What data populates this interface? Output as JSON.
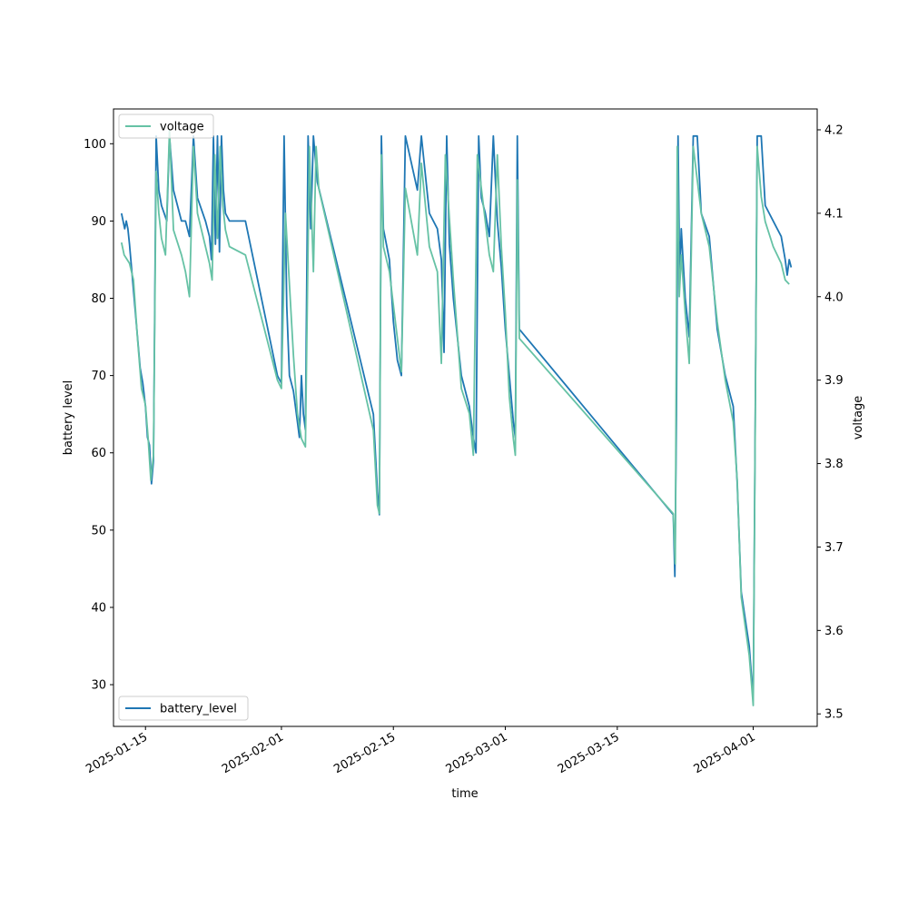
{
  "chart_data": {
    "type": "line",
    "xlabel": "time",
    "ylabel_left": "battery level",
    "ylabel_right": "voltage",
    "x_ticks": [
      "2025-01-15",
      "2025-02-01",
      "2025-02-15",
      "2025-03-01",
      "2025-03-15",
      "2025-04-01"
    ],
    "x_range": [
      "2025-01-11",
      "2025-04-09"
    ],
    "y_left_ticks": [
      30,
      40,
      50,
      60,
      70,
      80,
      90,
      100
    ],
    "y_left_range": [
      24.6,
      104.5
    ],
    "y_right_ticks": [
      3.5,
      3.6,
      3.7,
      3.8,
      3.9,
      4.0,
      4.1,
      4.2
    ],
    "y_right_range": [
      3.485,
      4.225
    ],
    "grid": false,
    "series": [
      {
        "name": "battery_level",
        "axis": "left",
        "color": "#1f77b4",
        "legend_position": "lower-left",
        "points": [
          [
            "2025-01-12",
            91
          ],
          [
            "2025-01-12",
            90
          ],
          [
            "2025-01-12",
            89
          ],
          [
            "2025-01-12",
            90
          ],
          [
            "2025-01-12",
            89
          ],
          [
            "2025-01-13",
            87
          ],
          [
            "2025-01-13",
            83
          ],
          [
            "2025-01-13",
            79
          ],
          [
            "2025-01-14",
            75
          ],
          [
            "2025-01-14",
            71
          ],
          [
            "2025-01-14",
            69
          ],
          [
            "2025-01-15",
            66
          ],
          [
            "2025-01-15",
            62
          ],
          [
            "2025-01-15",
            61
          ],
          [
            "2025-01-15",
            56
          ],
          [
            "2025-01-16",
            59
          ],
          [
            "2025-01-16",
            101
          ],
          [
            "2025-01-16",
            94
          ],
          [
            "2025-01-17",
            92
          ],
          [
            "2025-01-17",
            91
          ],
          [
            "2025-01-17",
            90
          ],
          [
            "2025-01-18",
            101
          ],
          [
            "2025-01-18",
            94
          ],
          [
            "2025-01-19",
            92
          ],
          [
            "2025-01-19",
            90
          ],
          [
            "2025-01-20",
            90
          ],
          [
            "2025-01-20",
            88
          ],
          [
            "2025-01-21",
            101
          ],
          [
            "2025-01-21",
            93
          ],
          [
            "2025-01-22",
            90
          ],
          [
            "2025-01-23",
            88
          ],
          [
            "2025-01-23",
            85
          ],
          [
            "2025-01-23",
            101
          ],
          [
            "2025-01-23",
            87
          ],
          [
            "2025-01-24",
            101
          ],
          [
            "2025-01-24",
            86
          ],
          [
            "2025-01-24",
            101
          ],
          [
            "2025-01-24",
            94
          ],
          [
            "2025-01-25",
            91
          ],
          [
            "2025-01-25",
            90
          ],
          [
            "2025-01-27",
            90
          ],
          [
            "2025-01-31",
            70
          ],
          [
            "2025-02-01",
            69
          ],
          [
            "2025-02-01",
            101
          ],
          [
            "2025-02-01",
            79
          ],
          [
            "2025-02-02",
            70
          ],
          [
            "2025-02-02",
            68
          ],
          [
            "2025-02-03",
            64
          ],
          [
            "2025-02-03",
            62
          ],
          [
            "2025-02-03",
            70
          ],
          [
            "2025-02-03",
            65
          ],
          [
            "2025-02-04",
            63
          ],
          [
            "2025-02-04",
            101
          ],
          [
            "2025-02-04",
            89
          ],
          [
            "2025-02-05",
            101
          ],
          [
            "2025-02-05",
            95
          ],
          [
            "2025-02-12",
            65
          ],
          [
            "2025-02-13",
            55
          ],
          [
            "2025-02-13",
            52
          ],
          [
            "2025-02-13",
            101
          ],
          [
            "2025-02-13",
            89
          ],
          [
            "2025-02-14",
            85
          ],
          [
            "2025-02-15",
            77
          ],
          [
            "2025-02-15",
            72
          ],
          [
            "2025-02-16",
            70
          ],
          [
            "2025-02-16",
            101
          ],
          [
            "2025-02-18",
            94
          ],
          [
            "2025-02-18",
            101
          ],
          [
            "2025-02-19",
            91
          ],
          [
            "2025-02-20",
            89
          ],
          [
            "2025-02-21",
            85
          ],
          [
            "2025-02-21",
            73
          ],
          [
            "2025-02-21",
            101
          ],
          [
            "2025-02-22",
            87
          ],
          [
            "2025-02-22",
            80
          ],
          [
            "2025-02-23",
            70
          ],
          [
            "2025-02-24",
            66
          ],
          [
            "2025-02-25",
            62
          ],
          [
            "2025-02-25",
            60
          ],
          [
            "2025-02-25",
            101
          ],
          [
            "2025-02-26",
            93
          ],
          [
            "2025-02-26",
            91
          ],
          [
            "2025-02-27",
            88
          ],
          [
            "2025-02-27",
            101
          ],
          [
            "2025-02-28",
            90
          ],
          [
            "2025-02-28",
            84
          ],
          [
            "2025-03-01",
            76
          ],
          [
            "2025-03-01",
            70
          ],
          [
            "2025-03-02",
            64
          ],
          [
            "2025-03-02",
            62
          ],
          [
            "2025-03-02",
            101
          ],
          [
            "2025-03-02",
            76
          ],
          [
            "2025-03-22",
            52
          ],
          [
            "2025-03-22",
            44
          ],
          [
            "2025-03-22",
            65
          ],
          [
            "2025-03-22",
            101
          ],
          [
            "2025-03-22",
            82
          ],
          [
            "2025-03-23",
            89
          ],
          [
            "2025-03-23",
            80
          ],
          [
            "2025-03-24",
            75
          ],
          [
            "2025-03-24",
            101
          ],
          [
            "2025-03-25",
            101
          ],
          [
            "2025-03-25",
            91
          ],
          [
            "2025-03-26",
            88
          ],
          [
            "2025-03-27",
            76
          ],
          [
            "2025-03-28",
            70
          ],
          [
            "2025-03-29",
            66
          ],
          [
            "2025-03-30",
            56
          ],
          [
            "2025-03-30",
            42
          ],
          [
            "2025-03-31",
            35
          ],
          [
            "2025-04-01",
            28
          ],
          [
            "2025-04-01",
            101
          ],
          [
            "2025-04-02",
            101
          ],
          [
            "2025-04-02",
            92
          ],
          [
            "2025-04-03",
            90
          ],
          [
            "2025-04-04",
            88
          ],
          [
            "2025-04-05",
            85
          ],
          [
            "2025-04-05",
            83
          ],
          [
            "2025-04-05",
            85
          ],
          [
            "2025-04-05",
            84
          ]
        ]
      },
      {
        "name": "voltage",
        "axis": "right",
        "color": "#66c2a5",
        "legend_position": "upper-left",
        "points": [
          [
            "2025-01-12",
            4.065
          ],
          [
            "2025-01-12",
            4.05
          ],
          [
            "2025-01-12",
            4.045
          ],
          [
            "2025-01-13",
            4.04
          ],
          [
            "2025-01-13",
            4.02
          ],
          [
            "2025-01-14",
            3.95
          ],
          [
            "2025-01-14",
            3.89
          ],
          [
            "2025-01-15",
            3.87
          ],
          [
            "2025-01-15",
            3.83
          ],
          [
            "2025-01-15",
            3.78
          ],
          [
            "2025-01-16",
            3.81
          ],
          [
            "2025-01-16",
            4.15
          ],
          [
            "2025-01-16",
            4.1
          ],
          [
            "2025-01-17",
            4.07
          ],
          [
            "2025-01-17",
            4.05
          ],
          [
            "2025-01-18",
            4.2
          ],
          [
            "2025-01-18",
            4.08
          ],
          [
            "2025-01-19",
            4.05
          ],
          [
            "2025-01-20",
            4.03
          ],
          [
            "2025-01-20",
            4.0
          ],
          [
            "2025-01-21",
            4.18
          ],
          [
            "2025-01-21",
            4.1
          ],
          [
            "2025-01-22",
            4.06
          ],
          [
            "2025-01-23",
            4.04
          ],
          [
            "2025-01-23",
            4.02
          ],
          [
            "2025-01-23",
            4.17
          ],
          [
            "2025-01-24",
            4.07
          ],
          [
            "2025-01-24",
            4.18
          ],
          [
            "2025-01-24",
            4.11
          ],
          [
            "2025-01-25",
            4.08
          ],
          [
            "2025-01-25",
            4.06
          ],
          [
            "2025-01-27",
            4.05
          ],
          [
            "2025-01-31",
            3.9
          ],
          [
            "2025-02-01",
            3.89
          ],
          [
            "2025-02-01",
            4.1
          ],
          [
            "2025-02-02",
            3.93
          ],
          [
            "2025-02-03",
            3.86
          ],
          [
            "2025-02-03",
            3.83
          ],
          [
            "2025-02-04",
            3.82
          ],
          [
            "2025-02-04",
            4.18
          ],
          [
            "2025-02-05",
            4.03
          ],
          [
            "2025-02-05",
            4.18
          ],
          [
            "2025-02-05",
            4.13
          ],
          [
            "2025-02-12",
            3.84
          ],
          [
            "2025-02-13",
            3.75
          ],
          [
            "2025-02-13",
            3.74
          ],
          [
            "2025-02-13",
            4.17
          ],
          [
            "2025-02-13",
            4.06
          ],
          [
            "2025-02-14",
            4.03
          ],
          [
            "2025-02-15",
            3.95
          ],
          [
            "2025-02-16",
            3.91
          ],
          [
            "2025-02-16",
            4.13
          ],
          [
            "2025-02-18",
            4.05
          ],
          [
            "2025-02-18",
            4.16
          ],
          [
            "2025-02-19",
            4.06
          ],
          [
            "2025-02-20",
            4.03
          ],
          [
            "2025-02-21",
            3.92
          ],
          [
            "2025-02-21",
            4.17
          ],
          [
            "2025-02-22",
            4.02
          ],
          [
            "2025-02-23",
            3.89
          ],
          [
            "2025-02-24",
            3.86
          ],
          [
            "2025-02-25",
            3.81
          ],
          [
            "2025-02-25",
            4.17
          ],
          [
            "2025-02-26",
            4.09
          ],
          [
            "2025-02-27",
            4.05
          ],
          [
            "2025-02-27",
            4.03
          ],
          [
            "2025-02-28",
            4.17
          ],
          [
            "2025-02-28",
            4.06
          ],
          [
            "2025-03-01",
            3.98
          ],
          [
            "2025-03-01",
            3.88
          ],
          [
            "2025-03-02",
            3.83
          ],
          [
            "2025-03-02",
            3.81
          ],
          [
            "2025-03-02",
            4.14
          ],
          [
            "2025-03-02",
            3.95
          ],
          [
            "2025-03-22",
            3.74
          ],
          [
            "2025-03-22",
            3.68
          ],
          [
            "2025-03-22",
            4.18
          ],
          [
            "2025-03-22",
            4.0
          ],
          [
            "2025-03-23",
            4.05
          ],
          [
            "2025-03-23",
            3.98
          ],
          [
            "2025-03-24",
            3.92
          ],
          [
            "2025-03-24",
            4.18
          ],
          [
            "2025-03-25",
            4.1
          ],
          [
            "2025-03-26",
            4.06
          ],
          [
            "2025-03-27",
            3.97
          ],
          [
            "2025-03-28",
            3.9
          ],
          [
            "2025-03-29",
            3.85
          ],
          [
            "2025-03-30",
            3.78
          ],
          [
            "2025-03-30",
            3.64
          ],
          [
            "2025-03-31",
            3.57
          ],
          [
            "2025-04-01",
            3.51
          ],
          [
            "2025-04-01",
            4.18
          ],
          [
            "2025-04-02",
            4.12
          ],
          [
            "2025-04-02",
            4.09
          ],
          [
            "2025-04-03",
            4.06
          ],
          [
            "2025-04-04",
            4.04
          ],
          [
            "2025-04-05",
            4.02
          ],
          [
            "2025-04-05",
            4.015
          ]
        ]
      }
    ]
  }
}
